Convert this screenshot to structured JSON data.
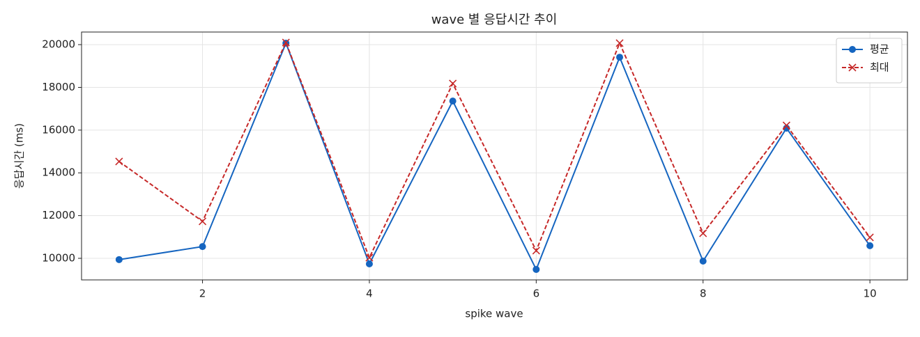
{
  "chart_data": {
    "type": "line",
    "title": "wave 별 응답시간 추이",
    "xlabel": "spike wave",
    "ylabel": "응답시간 (ms)",
    "x": [
      1,
      2,
      3,
      4,
      5,
      6,
      7,
      8,
      9,
      10
    ],
    "series": [
      {
        "name": "평균",
        "color": "#1565c0",
        "linestyle": "solid",
        "marker": "circle",
        "values": [
          9940,
          10550,
          20070,
          9740,
          17360,
          9480,
          19410,
          9870,
          16090,
          10590
        ]
      },
      {
        "name": "최대",
        "color": "#c62828",
        "linestyle": "dashed",
        "marker": "x",
        "values": [
          14530,
          11730,
          20100,
          10030,
          18180,
          10360,
          20070,
          11170,
          16220,
          10980
        ]
      }
    ],
    "xlim": [
      0.55,
      10.45
    ],
    "ylim": [
      8990,
      20590
    ],
    "xticks": [
      2,
      4,
      6,
      8,
      10
    ],
    "yticks": [
      10000,
      12000,
      14000,
      16000,
      18000,
      20000
    ],
    "grid": true,
    "legend": "upper-right"
  }
}
